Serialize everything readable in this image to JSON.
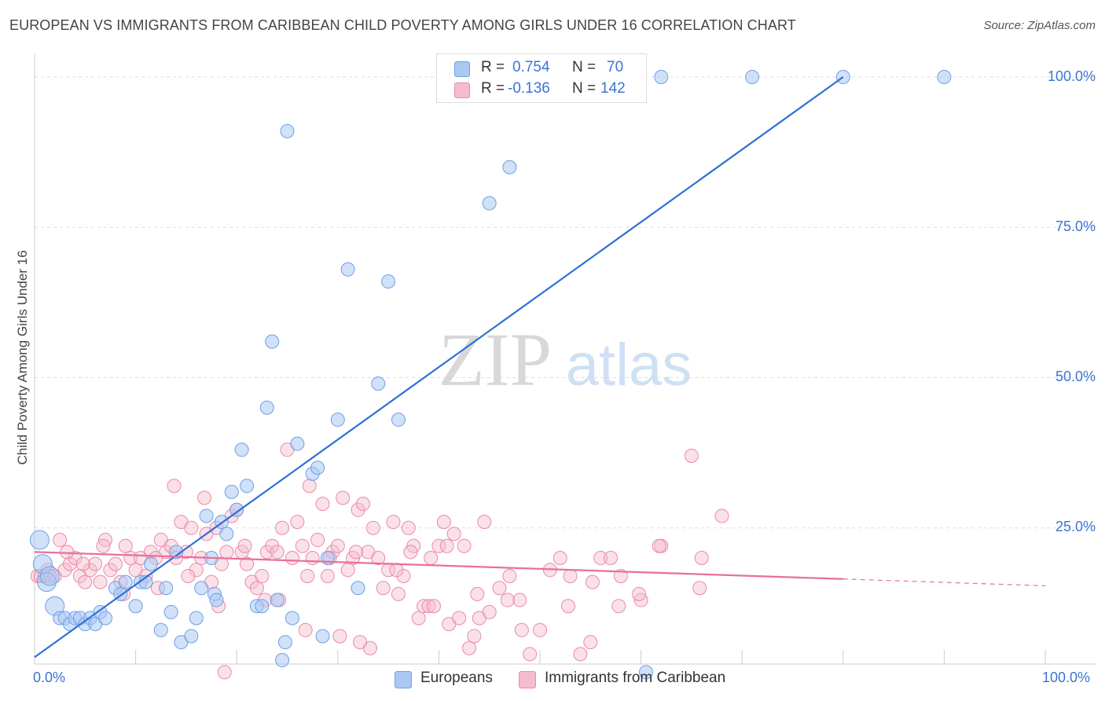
{
  "header": {
    "title": "EUROPEAN VS IMMIGRANTS FROM CARIBBEAN CHILD POVERTY AMONG GIRLS UNDER 16 CORRELATION CHART",
    "source": "Source: ZipAtlas.com"
  },
  "watermark": {
    "zip": "ZIP",
    "atlas": "atlas"
  },
  "legend": {
    "rows": [
      {
        "r_label": "R =",
        "r_value": "0.754",
        "n_label": "N =",
        "n_value": "70"
      },
      {
        "r_label": "R =",
        "r_value": "-0.136",
        "n_label": "N =",
        "n_value": "142"
      }
    ]
  },
  "bottom_legend": {
    "europeans": "Europeans",
    "caribbean": "Immigrants from Caribbean"
  },
  "axes": {
    "ylabel": "Child Poverty Among Girls Under 16",
    "x_min_label": "0.0%",
    "x_max_label": "100.0%",
    "y_ticks": [
      "100.0%",
      "75.0%",
      "50.0%",
      "25.0%"
    ]
  },
  "colors": {
    "european": "#6fa0e8",
    "european_fill": "#aac8f2",
    "european_line": "#2f6fd6",
    "caribbean": "#ea8aa8",
    "caribbean_fill": "#f5bccd",
    "caribbean_line": "#e8709a",
    "tick_text": "#3a74d4"
  },
  "chart_data": {
    "type": "scatter",
    "xlabel": "",
    "ylabel": "Child Poverty Among Girls Under 16",
    "xlim": [
      0,
      100
    ],
    "ylim": [
      0,
      100
    ],
    "grid": "dashed horizontal",
    "legend_position": "top-center",
    "series": [
      {
        "name": "Europeans",
        "r": 0.754,
        "n": 70,
        "trend": {
          "x": [
            0,
            80
          ],
          "y": [
            3.5,
            100
          ]
        },
        "points": [
          [
            0.5,
            23
          ],
          [
            0.8,
            19
          ],
          [
            1.2,
            16
          ],
          [
            1.5,
            17
          ],
          [
            2.0,
            12
          ],
          [
            2.5,
            10
          ],
          [
            3.0,
            10
          ],
          [
            3.5,
            9
          ],
          [
            4.0,
            10
          ],
          [
            4.5,
            10
          ],
          [
            5.0,
            9
          ],
          [
            5.5,
            10
          ],
          [
            6.0,
            9
          ],
          [
            6.5,
            11
          ],
          [
            7.0,
            10
          ],
          [
            8.0,
            15
          ],
          [
            8.5,
            14
          ],
          [
            9.0,
            16
          ],
          [
            10.0,
            12
          ],
          [
            10.5,
            16
          ],
          [
            11.0,
            16
          ],
          [
            11.5,
            19
          ],
          [
            12.5,
            8
          ],
          [
            13.0,
            15
          ],
          [
            13.5,
            11
          ],
          [
            14.0,
            21
          ],
          [
            14.5,
            6
          ],
          [
            15.5,
            7
          ],
          [
            16.0,
            10
          ],
          [
            16.5,
            15
          ],
          [
            17.0,
            27
          ],
          [
            17.5,
            20
          ],
          [
            17.8,
            14
          ],
          [
            18.0,
            13
          ],
          [
            18.5,
            26
          ],
          [
            19.0,
            24
          ],
          [
            19.5,
            31
          ],
          [
            20.0,
            28
          ],
          [
            20.5,
            38
          ],
          [
            21.0,
            32
          ],
          [
            22.0,
            12
          ],
          [
            22.5,
            12
          ],
          [
            23.0,
            45
          ],
          [
            23.5,
            56
          ],
          [
            24.0,
            13
          ],
          [
            24.5,
            3
          ],
          [
            24.8,
            6
          ],
          [
            25.0,
            91
          ],
          [
            25.5,
            10
          ],
          [
            26.0,
            39
          ],
          [
            27.5,
            34
          ],
          [
            28.0,
            35
          ],
          [
            28.5,
            7
          ],
          [
            29.0,
            20
          ],
          [
            30.0,
            43
          ],
          [
            31.0,
            68
          ],
          [
            32.0,
            15
          ],
          [
            34.0,
            49
          ],
          [
            35.0,
            66
          ],
          [
            36.0,
            43
          ],
          [
            45.0,
            79
          ],
          [
            47.0,
            85
          ],
          [
            51.0,
            100
          ],
          [
            53.0,
            100
          ],
          [
            56.0,
            99
          ],
          [
            62.0,
            100
          ],
          [
            71.0,
            100
          ],
          [
            80.0,
            100
          ],
          [
            90.0,
            100
          ],
          [
            60.5,
            1
          ]
        ]
      },
      {
        "name": "Immigrants from Caribbean",
        "r": -0.136,
        "n": 142,
        "trend": {
          "x": [
            0,
            80
          ],
          "y": [
            21,
            16.5
          ]
        },
        "points": [
          [
            0.3,
            17
          ],
          [
            0.6,
            17
          ],
          [
            1.0,
            17
          ],
          [
            1.3,
            18
          ],
          [
            2.0,
            17
          ],
          [
            2.5,
            23
          ],
          [
            3.0,
            18
          ],
          [
            3.5,
            19
          ],
          [
            4.0,
            20
          ],
          [
            4.5,
            17
          ],
          [
            5.0,
            16
          ],
          [
            5.5,
            18
          ],
          [
            6.0,
            19
          ],
          [
            6.5,
            16
          ],
          [
            7.0,
            23
          ],
          [
            7.5,
            18
          ],
          [
            8.0,
            19
          ],
          [
            8.5,
            16
          ],
          [
            9.0,
            22
          ],
          [
            9.5,
            20
          ],
          [
            10.0,
            18
          ],
          [
            10.5,
            20
          ],
          [
            11.0,
            17
          ],
          [
            11.5,
            21
          ],
          [
            12.0,
            20
          ],
          [
            12.5,
            23
          ],
          [
            13.0,
            21
          ],
          [
            13.5,
            22
          ],
          [
            14.0,
            20
          ],
          [
            14.5,
            26
          ],
          [
            15.0,
            21
          ],
          [
            15.5,
            25
          ],
          [
            16.0,
            18
          ],
          [
            16.5,
            20
          ],
          [
            17.0,
            24
          ],
          [
            17.5,
            16
          ],
          [
            18.0,
            25
          ],
          [
            18.5,
            19
          ],
          [
            19.0,
            21
          ],
          [
            19.5,
            27
          ],
          [
            20.0,
            28
          ],
          [
            20.5,
            21
          ],
          [
            21.0,
            19
          ],
          [
            21.5,
            16
          ],
          [
            22.0,
            15
          ],
          [
            22.5,
            17
          ],
          [
            23.0,
            21
          ],
          [
            23.5,
            22
          ],
          [
            24.0,
            21
          ],
          [
            24.5,
            25
          ],
          [
            25.0,
            38
          ],
          [
            25.5,
            20
          ],
          [
            26.0,
            26
          ],
          [
            26.5,
            22
          ],
          [
            27.0,
            17
          ],
          [
            27.5,
            20
          ],
          [
            28.0,
            23
          ],
          [
            28.5,
            29
          ],
          [
            29.0,
            17
          ],
          [
            29.5,
            21
          ],
          [
            30.0,
            22
          ],
          [
            30.5,
            30
          ],
          [
            31.0,
            18
          ],
          [
            31.5,
            20
          ],
          [
            32.0,
            28
          ],
          [
            32.5,
            29
          ],
          [
            33.0,
            21
          ],
          [
            33.5,
            25
          ],
          [
            34.0,
            20
          ],
          [
            34.5,
            15
          ],
          [
            35.0,
            18
          ],
          [
            35.5,
            26
          ],
          [
            36.0,
            14
          ],
          [
            36.5,
            17
          ],
          [
            37.0,
            25
          ],
          [
            37.5,
            22
          ],
          [
            38.0,
            10
          ],
          [
            38.5,
            12
          ],
          [
            39.0,
            12
          ],
          [
            39.5,
            12
          ],
          [
            40.0,
            22
          ],
          [
            40.5,
            26
          ],
          [
            41.0,
            9
          ],
          [
            41.5,
            24
          ],
          [
            42.0,
            10
          ],
          [
            42.5,
            22
          ],
          [
            43.0,
            5
          ],
          [
            43.5,
            7
          ],
          [
            44.0,
            10
          ],
          [
            44.5,
            26
          ],
          [
            45.0,
            11
          ],
          [
            46.0,
            15
          ],
          [
            47.0,
            17
          ],
          [
            48.0,
            13
          ],
          [
            49.0,
            4
          ],
          [
            50.0,
            8
          ],
          [
            51.0,
            18
          ],
          [
            52.0,
            20
          ],
          [
            53.0,
            17
          ],
          [
            54.0,
            4
          ],
          [
            55.0,
            6
          ],
          [
            56.0,
            20
          ],
          [
            57.0,
            20
          ],
          [
            58.0,
            17
          ],
          [
            60.0,
            13
          ],
          [
            62.0,
            22
          ],
          [
            65.0,
            37
          ],
          [
            66.0,
            20
          ],
          [
            68.0,
            27
          ],
          [
            1.5,
            17
          ],
          [
            3.2,
            21
          ],
          [
            4.8,
            19
          ],
          [
            6.8,
            22
          ],
          [
            8.8,
            14
          ],
          [
            12.2,
            15
          ],
          [
            15.2,
            17
          ],
          [
            18.2,
            12
          ],
          [
            20.8,
            22
          ],
          [
            22.8,
            13
          ],
          [
            24.2,
            13
          ],
          [
            26.8,
            8
          ],
          [
            29.2,
            20
          ],
          [
            31.8,
            21
          ],
          [
            33.2,
            5
          ],
          [
            35.8,
            18
          ],
          [
            37.2,
            21
          ],
          [
            39.2,
            20
          ],
          [
            40.8,
            22
          ],
          [
            43.8,
            14
          ],
          [
            46.8,
            13
          ],
          [
            48.2,
            8
          ],
          [
            52.8,
            12
          ],
          [
            55.2,
            16
          ],
          [
            57.8,
            12
          ],
          [
            59.8,
            14
          ],
          [
            61.8,
            22
          ],
          [
            65.8,
            15
          ],
          [
            13.8,
            32
          ],
          [
            16.8,
            30
          ],
          [
            18.8,
            1
          ],
          [
            27.2,
            32
          ],
          [
            30.2,
            7
          ],
          [
            32.2,
            6
          ]
        ]
      }
    ]
  }
}
